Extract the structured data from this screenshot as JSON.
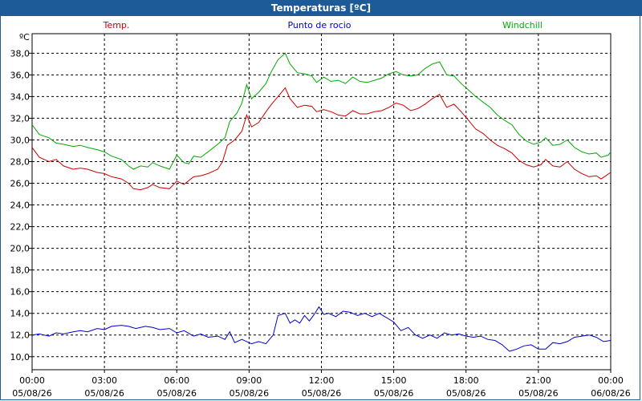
{
  "window": {
    "title": "Temperaturas [ºC]"
  },
  "chart_data": {
    "type": "line",
    "title": "Temperaturas [ºC]",
    "ylabel": "ºC",
    "xlabel": "",
    "ylim": [
      8.8,
      39.8
    ],
    "xlim": [
      0,
      24
    ],
    "grid": true,
    "legend_position": "top",
    "y_ticks": [
      {
        "value": 10,
        "label": "10,0"
      },
      {
        "value": 12,
        "label": "12,0"
      },
      {
        "value": 14,
        "label": "14,0"
      },
      {
        "value": 16,
        "label": "16,0"
      },
      {
        "value": 18,
        "label": "18,0"
      },
      {
        "value": 20,
        "label": "20,0"
      },
      {
        "value": 22,
        "label": "22,0"
      },
      {
        "value": 24,
        "label": "24,0"
      },
      {
        "value": 26,
        "label": "26,0"
      },
      {
        "value": 28,
        "label": "28,0"
      },
      {
        "value": 30,
        "label": "30,0"
      },
      {
        "value": 32,
        "label": "32,0"
      },
      {
        "value": 34,
        "label": "34,0"
      },
      {
        "value": 36,
        "label": "36,0"
      },
      {
        "value": 38,
        "label": "38,0"
      }
    ],
    "x_ticks": [
      {
        "value": 0,
        "time": "00:00",
        "date": "05/08/26"
      },
      {
        "value": 3,
        "time": "03:00",
        "date": "05/08/26"
      },
      {
        "value": 6,
        "time": "06:00",
        "date": "05/08/26"
      },
      {
        "value": 9,
        "time": "09:00",
        "date": "05/08/26"
      },
      {
        "value": 12,
        "time": "12:00",
        "date": "05/08/26"
      },
      {
        "value": 15,
        "time": "15:00",
        "date": "05/08/26"
      },
      {
        "value": 18,
        "time": "18:00",
        "date": "05/08/26"
      },
      {
        "value": 21,
        "time": "21:00",
        "date": "05/08/26"
      },
      {
        "value": 24,
        "time": "00:00",
        "date": "06/08/26"
      }
    ],
    "series": [
      {
        "name": "Temp.",
        "color": "#cc0000",
        "points": [
          [
            0,
            29.3
          ],
          [
            0.3,
            28.4
          ],
          [
            0.7,
            28.0
          ],
          [
            1.0,
            28.2
          ],
          [
            1.3,
            27.6
          ],
          [
            1.7,
            27.3
          ],
          [
            2.0,
            27.4
          ],
          [
            2.3,
            27.3
          ],
          [
            2.7,
            27.0
          ],
          [
            3.0,
            26.9
          ],
          [
            3.3,
            26.6
          ],
          [
            3.7,
            26.4
          ],
          [
            4.0,
            26.0
          ],
          [
            4.2,
            25.5
          ],
          [
            4.5,
            25.4
          ],
          [
            4.8,
            25.6
          ],
          [
            5.0,
            25.9
          ],
          [
            5.3,
            25.6
          ],
          [
            5.7,
            25.5
          ],
          [
            6.0,
            26.2
          ],
          [
            6.3,
            25.9
          ],
          [
            6.7,
            26.6
          ],
          [
            7.0,
            26.7
          ],
          [
            7.3,
            26.9
          ],
          [
            7.7,
            27.3
          ],
          [
            7.9,
            28.0
          ],
          [
            8.1,
            29.5
          ],
          [
            8.4,
            30.0
          ],
          [
            8.7,
            30.8
          ],
          [
            8.9,
            32.3
          ],
          [
            9.1,
            31.2
          ],
          [
            9.4,
            31.6
          ],
          [
            9.7,
            32.6
          ],
          [
            9.9,
            33.2
          ],
          [
            10.2,
            34.0
          ],
          [
            10.5,
            34.8
          ],
          [
            10.7,
            33.8
          ],
          [
            11.0,
            33.0
          ],
          [
            11.3,
            33.2
          ],
          [
            11.6,
            33.1
          ],
          [
            11.8,
            32.6
          ],
          [
            12.1,
            32.8
          ],
          [
            12.4,
            32.6
          ],
          [
            12.7,
            32.3
          ],
          [
            13.0,
            32.2
          ],
          [
            13.3,
            32.7
          ],
          [
            13.6,
            32.4
          ],
          [
            13.9,
            32.4
          ],
          [
            14.2,
            32.6
          ],
          [
            14.5,
            32.7
          ],
          [
            14.8,
            33.0
          ],
          [
            15.1,
            33.4
          ],
          [
            15.4,
            33.2
          ],
          [
            15.7,
            32.7
          ],
          [
            16.0,
            32.9
          ],
          [
            16.3,
            33.3
          ],
          [
            16.6,
            33.8
          ],
          [
            16.9,
            34.2
          ],
          [
            17.2,
            33.0
          ],
          [
            17.5,
            33.3
          ],
          [
            17.8,
            32.6
          ],
          [
            18.1,
            31.8
          ],
          [
            18.4,
            31.0
          ],
          [
            18.7,
            30.6
          ],
          [
            19.0,
            30.0
          ],
          [
            19.3,
            29.5
          ],
          [
            19.6,
            29.2
          ],
          [
            19.9,
            28.8
          ],
          [
            20.2,
            28.1
          ],
          [
            20.5,
            27.7
          ],
          [
            20.8,
            27.5
          ],
          [
            21.1,
            27.7
          ],
          [
            21.3,
            28.2
          ],
          [
            21.6,
            27.6
          ],
          [
            21.9,
            27.5
          ],
          [
            22.2,
            28.0
          ],
          [
            22.5,
            27.3
          ],
          [
            22.8,
            26.9
          ],
          [
            23.1,
            26.6
          ],
          [
            23.4,
            26.7
          ],
          [
            23.6,
            26.4
          ],
          [
            23.8,
            26.7
          ],
          [
            24.0,
            27.0
          ]
        ]
      },
      {
        "name": "Punto de rocio",
        "color": "#0000cc",
        "points": [
          [
            0,
            12.0
          ],
          [
            0.3,
            12.1
          ],
          [
            0.7,
            11.9
          ],
          [
            1.0,
            12.2
          ],
          [
            1.3,
            12.1
          ],
          [
            1.7,
            12.3
          ],
          [
            2.0,
            12.4
          ],
          [
            2.3,
            12.3
          ],
          [
            2.7,
            12.6
          ],
          [
            3.0,
            12.5
          ],
          [
            3.3,
            12.8
          ],
          [
            3.7,
            12.9
          ],
          [
            4.0,
            12.8
          ],
          [
            4.3,
            12.6
          ],
          [
            4.7,
            12.8
          ],
          [
            5.0,
            12.7
          ],
          [
            5.3,
            12.5
          ],
          [
            5.7,
            12.6
          ],
          [
            6.0,
            12.2
          ],
          [
            6.3,
            12.4
          ],
          [
            6.7,
            11.9
          ],
          [
            7.0,
            12.1
          ],
          [
            7.3,
            11.8
          ],
          [
            7.7,
            11.9
          ],
          [
            8.0,
            11.6
          ],
          [
            8.2,
            12.3
          ],
          [
            8.4,
            11.3
          ],
          [
            8.7,
            11.6
          ],
          [
            8.9,
            11.4
          ],
          [
            9.1,
            11.2
          ],
          [
            9.4,
            11.4
          ],
          [
            9.7,
            11.2
          ],
          [
            10.0,
            12.0
          ],
          [
            10.2,
            13.8
          ],
          [
            10.5,
            14.0
          ],
          [
            10.7,
            13.1
          ],
          [
            10.9,
            13.4
          ],
          [
            11.1,
            13.1
          ],
          [
            11.3,
            13.8
          ],
          [
            11.5,
            13.3
          ],
          [
            11.7,
            13.9
          ],
          [
            11.9,
            14.6
          ],
          [
            12.1,
            13.9
          ],
          [
            12.3,
            14.0
          ],
          [
            12.6,
            13.7
          ],
          [
            12.9,
            14.2
          ],
          [
            13.2,
            14.1
          ],
          [
            13.5,
            13.8
          ],
          [
            13.8,
            14.0
          ],
          [
            14.1,
            13.7
          ],
          [
            14.4,
            14.0
          ],
          [
            14.7,
            13.6
          ],
          [
            15.0,
            13.2
          ],
          [
            15.3,
            12.4
          ],
          [
            15.6,
            12.7
          ],
          [
            15.9,
            12.0
          ],
          [
            16.2,
            11.7
          ],
          [
            16.5,
            12.0
          ],
          [
            16.8,
            11.7
          ],
          [
            17.1,
            12.2
          ],
          [
            17.4,
            12.0
          ],
          [
            17.7,
            12.1
          ],
          [
            18.0,
            11.9
          ],
          [
            18.3,
            11.8
          ],
          [
            18.6,
            11.9
          ],
          [
            18.9,
            11.6
          ],
          [
            19.2,
            11.5
          ],
          [
            19.5,
            11.1
          ],
          [
            19.8,
            10.5
          ],
          [
            20.1,
            10.7
          ],
          [
            20.4,
            11.0
          ],
          [
            20.7,
            11.1
          ],
          [
            21.0,
            10.7
          ],
          [
            21.3,
            10.7
          ],
          [
            21.6,
            11.3
          ],
          [
            21.9,
            11.2
          ],
          [
            22.2,
            11.4
          ],
          [
            22.5,
            11.8
          ],
          [
            22.8,
            11.9
          ],
          [
            23.1,
            12.0
          ],
          [
            23.4,
            11.8
          ],
          [
            23.7,
            11.4
          ],
          [
            24.0,
            11.5
          ]
        ]
      },
      {
        "name": "Windchill",
        "color": "#00aa00",
        "points": [
          [
            0,
            31.4
          ],
          [
            0.3,
            30.5
          ],
          [
            0.7,
            30.2
          ],
          [
            1.0,
            29.7
          ],
          [
            1.3,
            29.6
          ],
          [
            1.7,
            29.4
          ],
          [
            2.0,
            29.5
          ],
          [
            2.3,
            29.3
          ],
          [
            2.7,
            29.1
          ],
          [
            3.0,
            28.9
          ],
          [
            3.3,
            28.5
          ],
          [
            3.7,
            28.2
          ],
          [
            4.0,
            27.6
          ],
          [
            4.2,
            27.3
          ],
          [
            4.5,
            27.6
          ],
          [
            4.8,
            27.5
          ],
          [
            5.0,
            27.9
          ],
          [
            5.3,
            27.6
          ],
          [
            5.7,
            27.3
          ],
          [
            6.0,
            28.6
          ],
          [
            6.3,
            27.9
          ],
          [
            6.5,
            27.8
          ],
          [
            6.7,
            28.5
          ],
          [
            7.0,
            28.4
          ],
          [
            7.3,
            28.9
          ],
          [
            7.7,
            29.6
          ],
          [
            8.0,
            30.2
          ],
          [
            8.2,
            31.7
          ],
          [
            8.5,
            32.5
          ],
          [
            8.7,
            33.4
          ],
          [
            8.9,
            35.1
          ],
          [
            9.1,
            33.8
          ],
          [
            9.4,
            34.4
          ],
          [
            9.7,
            35.2
          ],
          [
            9.9,
            36.2
          ],
          [
            10.2,
            37.4
          ],
          [
            10.5,
            38.0
          ],
          [
            10.7,
            37.0
          ],
          [
            11.0,
            36.2
          ],
          [
            11.3,
            36.1
          ],
          [
            11.6,
            35.9
          ],
          [
            11.8,
            35.3
          ],
          [
            12.1,
            35.8
          ],
          [
            12.4,
            35.4
          ],
          [
            12.7,
            35.5
          ],
          [
            13.0,
            35.2
          ],
          [
            13.3,
            35.8
          ],
          [
            13.6,
            35.4
          ],
          [
            13.9,
            35.3
          ],
          [
            14.2,
            35.5
          ],
          [
            14.5,
            35.7
          ],
          [
            14.8,
            36.1
          ],
          [
            15.1,
            36.3
          ],
          [
            15.4,
            36.0
          ],
          [
            15.7,
            35.9
          ],
          [
            16.0,
            36.0
          ],
          [
            16.3,
            36.6
          ],
          [
            16.6,
            37.0
          ],
          [
            16.9,
            37.2
          ],
          [
            17.2,
            36.0
          ],
          [
            17.5,
            35.9
          ],
          [
            17.8,
            35.2
          ],
          [
            18.1,
            34.6
          ],
          [
            18.4,
            34.0
          ],
          [
            18.7,
            33.5
          ],
          [
            19.0,
            33.0
          ],
          [
            19.3,
            32.3
          ],
          [
            19.6,
            31.8
          ],
          [
            19.9,
            31.4
          ],
          [
            20.2,
            30.5
          ],
          [
            20.5,
            29.9
          ],
          [
            20.8,
            29.6
          ],
          [
            21.1,
            29.8
          ],
          [
            21.3,
            30.2
          ],
          [
            21.6,
            29.5
          ],
          [
            21.9,
            29.6
          ],
          [
            22.2,
            30.0
          ],
          [
            22.5,
            29.3
          ],
          [
            22.8,
            28.9
          ],
          [
            23.1,
            28.7
          ],
          [
            23.4,
            28.8
          ],
          [
            23.6,
            28.4
          ],
          [
            23.9,
            28.6
          ],
          [
            24.0,
            28.9
          ]
        ]
      }
    ]
  }
}
